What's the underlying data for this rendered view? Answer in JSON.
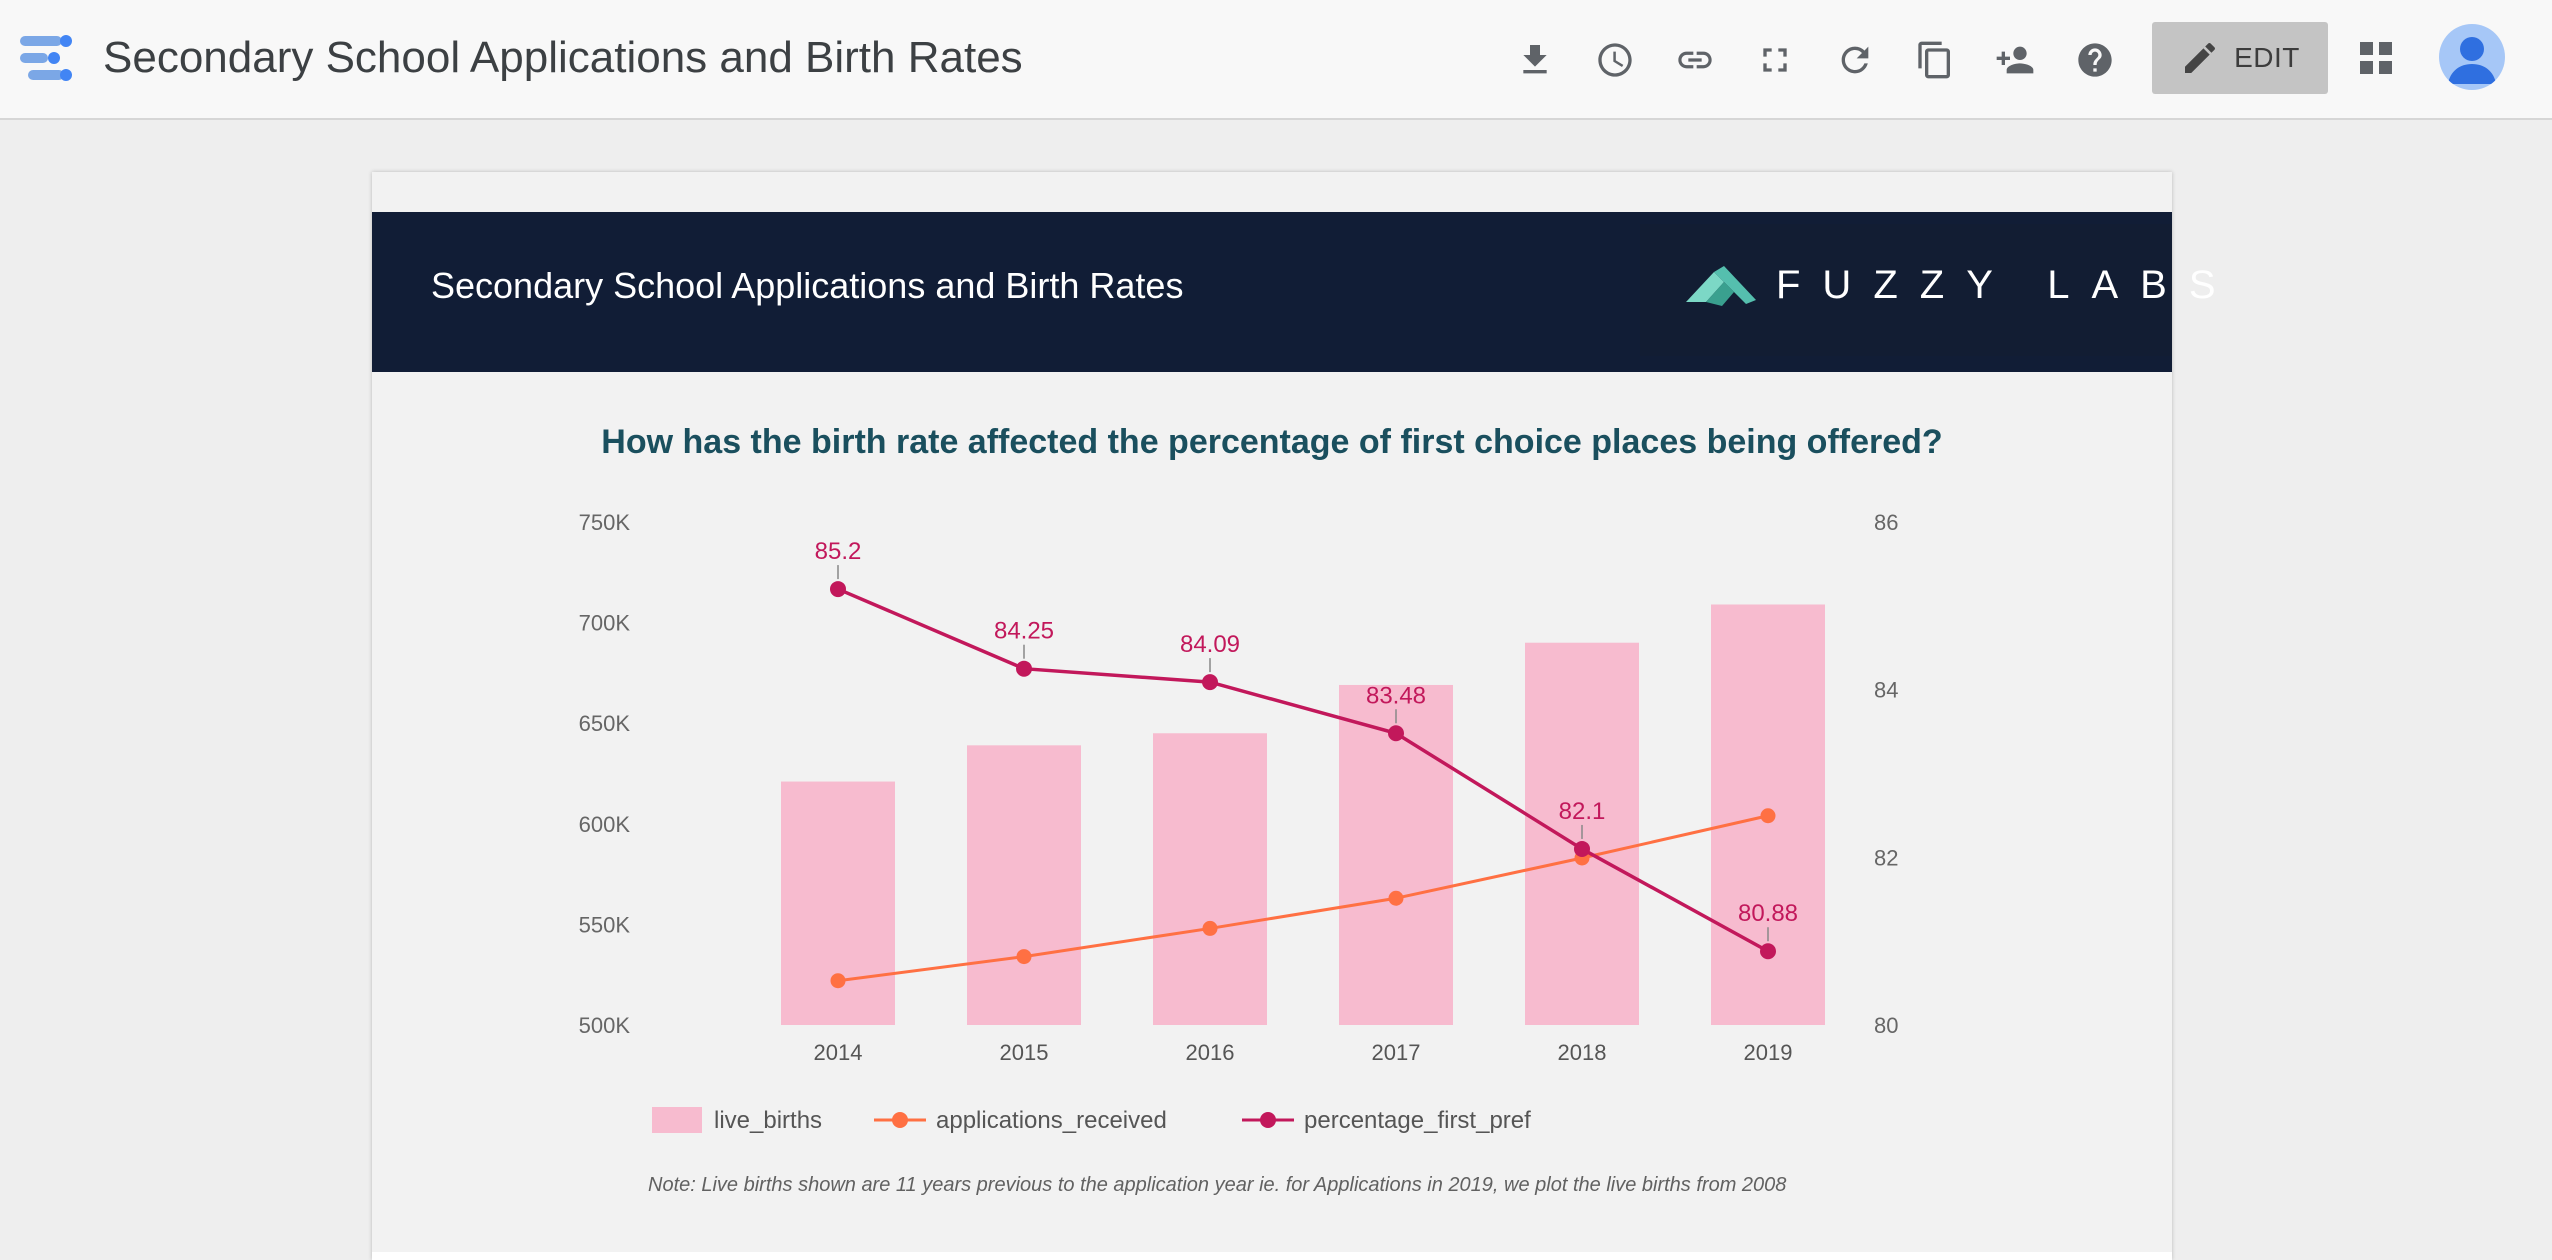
{
  "app": {
    "title": "Secondary School Applications and Birth Rates",
    "edit_label": "EDIT"
  },
  "toolbar": {
    "icons": [
      "download-icon",
      "history-icon",
      "link-icon",
      "fullscreen-icon",
      "refresh-icon",
      "copy-icon",
      "share-icon",
      "help-icon",
      "apps-grid-icon"
    ]
  },
  "report": {
    "header_title": "Secondary School Applications and Birth Rates",
    "brand_name": "FUZZY LABS",
    "question": "How has the birth rate affected the percentage of first choice places being offered?",
    "note": "Note: Live births shown are 11 years previous to the application year ie. for Applications in 2019, we plot the live births from 2008"
  },
  "colors": {
    "live_births": "#f7bbcf",
    "applications_received": "#ff7043",
    "percentage_first_pref": "#c2185b",
    "header_bg": "#111d36",
    "question": "#1a4f5e",
    "edit_button": "#c4c4c4",
    "brand_accent": "#7cd8c6"
  },
  "chart_data": {
    "type": "bar",
    "categories": [
      "2014",
      "2015",
      "2016",
      "2017",
      "2018",
      "2019"
    ],
    "left_axis": {
      "ylim": [
        500000,
        750000
      ],
      "ticks": [
        "500K",
        "550K",
        "600K",
        "650K",
        "700K",
        "750K"
      ],
      "tick_values": [
        500000,
        550000,
        600000,
        650000,
        700000,
        750000
      ]
    },
    "right_axis": {
      "ylim": [
        80,
        86
      ],
      "ticks": [
        "80",
        "82",
        "84",
        "86"
      ],
      "tick_values": [
        80,
        82,
        84,
        86
      ]
    },
    "series": [
      {
        "name": "live_births",
        "type": "bar",
        "axis": "left",
        "values": [
          621000,
          639000,
          645000,
          669000,
          690000,
          709000
        ]
      },
      {
        "name": "applications_received",
        "type": "line",
        "axis": "left",
        "values": [
          522000,
          534000,
          548000,
          563000,
          583000,
          604000
        ]
      },
      {
        "name": "percentage_first_pref",
        "type": "line",
        "axis": "right",
        "values": [
          85.2,
          84.25,
          84.09,
          83.48,
          82.1,
          80.88
        ],
        "data_labels": [
          "85.2",
          "84.25",
          "84.09",
          "83.48",
          "82.1",
          "80.88"
        ]
      }
    ],
    "legend_position": "bottom",
    "grid": false
  }
}
